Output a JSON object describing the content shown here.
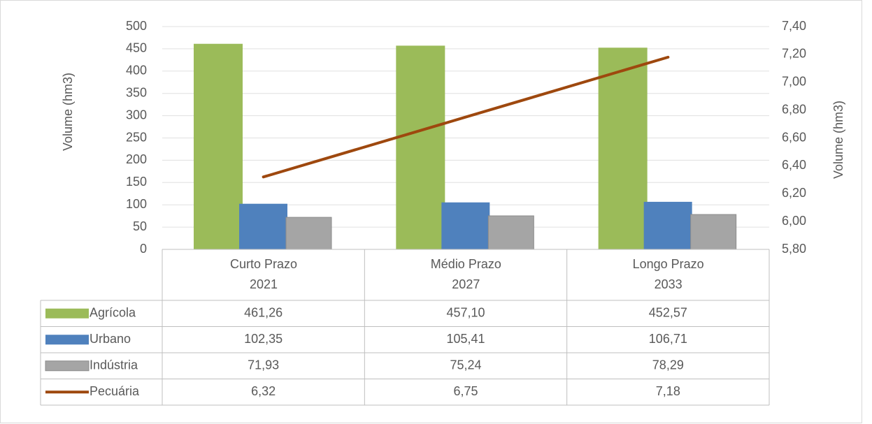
{
  "chart_data": {
    "type": "bar",
    "categories": [
      "Curto Prazo\n2021",
      "Médio Prazo\n2027",
      "Longo Prazo\n2033"
    ],
    "series": [
      {
        "name": "Agrícola",
        "color": "#9bbb59",
        "values": [
          461.26,
          457.1,
          452.57
        ],
        "value_labels": [
          "461,26",
          "457,10",
          "452,57"
        ]
      },
      {
        "name": "Urbano",
        "color": "#4f81bd",
        "values": [
          102.35,
          105.41,
          106.71
        ],
        "value_labels": [
          "102,35",
          "105,41",
          "106,71"
        ]
      },
      {
        "name": "Indústria",
        "color": "#a5a5a5",
        "values": [
          71.93,
          75.24,
          78.29
        ],
        "value_labels": [
          "71,93",
          "75,24",
          "78,29"
        ]
      },
      {
        "name": "Pecuária",
        "color": "#9e480e",
        "type": "line",
        "axis": "y2",
        "values": [
          6.32,
          6.75,
          7.18
        ],
        "value_labels": [
          "6,32",
          "6,75",
          "7,18"
        ]
      }
    ],
    "ylabel": "Volume  (hm3)",
    "y2label": "Volume  (hm3)",
    "ylim": [
      0,
      500
    ],
    "yticks": [
      0,
      50,
      100,
      150,
      200,
      250,
      300,
      350,
      400,
      450,
      500
    ],
    "y2lim": [
      5.8,
      7.4
    ],
    "y2ticks": [
      {
        "value": 5.8,
        "label": "5,80"
      },
      {
        "value": 6.0,
        "label": "6,00"
      },
      {
        "value": 6.2,
        "label": "6,20"
      },
      {
        "value": 6.4,
        "label": "6,40"
      },
      {
        "value": 6.6,
        "label": "6,60"
      },
      {
        "value": 6.8,
        "label": "6,80"
      },
      {
        "value": 7.0,
        "label": "7,00"
      },
      {
        "value": 7.2,
        "label": "7,20"
      },
      {
        "value": 7.4,
        "label": "7,40"
      }
    ],
    "grid": true,
    "data_table": true
  }
}
